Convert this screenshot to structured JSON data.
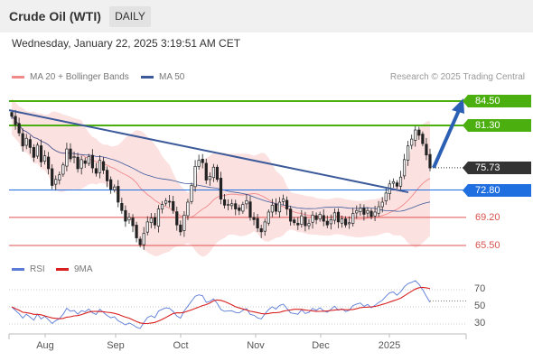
{
  "header": {
    "title": "Crude Oil (WTI)",
    "period": "DAILY"
  },
  "date_line": "Wednesday, January 22, 2025 3:19:51 AM CET",
  "legend": {
    "bollinger": {
      "label": "MA 20 + Bollinger Bands",
      "color": "#f08a8a"
    },
    "ma50": {
      "label": "MA 50",
      "color": "#3c5a9a"
    }
  },
  "credit": "Research © 2025 Trading Central",
  "rsi_legend": {
    "rsi": {
      "label": "RSI",
      "color": "#5a7bd6"
    },
    "ma9": {
      "label": "9MA",
      "color": "#d92020"
    }
  },
  "levels": [
    {
      "value": 84.5,
      "label": "84.50",
      "type": "resistance",
      "color": "#4caf10",
      "text_color": "#ffffff"
    },
    {
      "value": 81.3,
      "label": "81.30",
      "type": "resistance",
      "color": "#4caf10",
      "text_color": "#ffffff"
    },
    {
      "value": 75.73,
      "label": "75.73",
      "type": "last-price",
      "color": "#333333",
      "text_color": "#ffffff"
    },
    {
      "value": 72.8,
      "label": "72.80",
      "type": "pivot",
      "color": "#1f6fe0",
      "text_color": "#ffffff"
    },
    {
      "value": 69.2,
      "label": "69.20",
      "type": "support",
      "color": "#e05050",
      "text_color": "#d9534f"
    },
    {
      "value": 65.5,
      "label": "65.50",
      "type": "support",
      "color": "#e05050",
      "text_color": "#d9534f"
    }
  ],
  "rsi_ticks": [
    "70",
    "50",
    "30"
  ],
  "x_ticks": [
    "Aug",
    "Sep",
    "Oct",
    "Nov",
    "Dec",
    "2025"
  ],
  "chart_data": {
    "type": "candlestick",
    "title": "Crude Oil (WTI)",
    "period": "DAILY",
    "price_range": [
      64.8,
      86.0
    ],
    "last_price": 75.73,
    "x_ticks": [
      "Aug",
      "Sep",
      "Oct",
      "Nov",
      "Dec",
      "2025"
    ],
    "closes": [
      82.5,
      81.4,
      80.3,
      78.6,
      79.6,
      78.4,
      77.1,
      78.7,
      76.5,
      77.3,
      75.6,
      73.4,
      74.2,
      74.8,
      76.1,
      78.2,
      76.9,
      77.2,
      75.6,
      76.8,
      76.3,
      77.2,
      75.7,
      75.0,
      76.7,
      75.4,
      74.0,
      72.9,
      73.2,
      71.2,
      70.1,
      68.7,
      69.2,
      68.1,
      66.5,
      65.6,
      67.1,
      68.6,
      69.1,
      68.2,
      70.3,
      70.9,
      71.4,
      71.2,
      70.1,
      68.2,
      67.3,
      69.5,
      71.2,
      73.4,
      75.9,
      76.7,
      76.4,
      74.1,
      74.6,
      75.8,
      74.2,
      71.6,
      70.8,
      70.9,
      71.0,
      70.3,
      70.1,
      70.9,
      71.4,
      69.2,
      68.9,
      67.8,
      67.3,
      68.6,
      69.9,
      70.8,
      70.0,
      71.2,
      71.6,
      70.3,
      68.7,
      68.5,
      68.2,
      69.4,
      68.1,
      68.4,
      69.5,
      68.9,
      69.6,
      68.7,
      68.2,
      68.9,
      69.8,
      68.6,
      69.0,
      68.2,
      68.5,
      69.7,
      70.1,
      70.4,
      69.6,
      70.1,
      69.3,
      69.9,
      70.6,
      71.2,
      72.4,
      73.6,
      73.9,
      73.3,
      74.5,
      76.8,
      78.6,
      79.5,
      80.7,
      80.0,
      78.9,
      77.4,
      75.7
    ],
    "indicators": {
      "ma20_bollinger": "MA 20 + Bollinger Bands",
      "ma50": "MA 50"
    },
    "trendline": {
      "from": 83.3,
      "to": 72.5,
      "color": "#3c5a9a"
    },
    "projection": {
      "from": 75.73,
      "to": 84.5,
      "color": "#2b5fb3"
    },
    "rsi": {
      "label": "RSI",
      "ma_label": "9MA",
      "range": [
        20,
        80
      ],
      "ticks": [
        70,
        50,
        30
      ],
      "last": 57,
      "ma_last": 64
    }
  }
}
